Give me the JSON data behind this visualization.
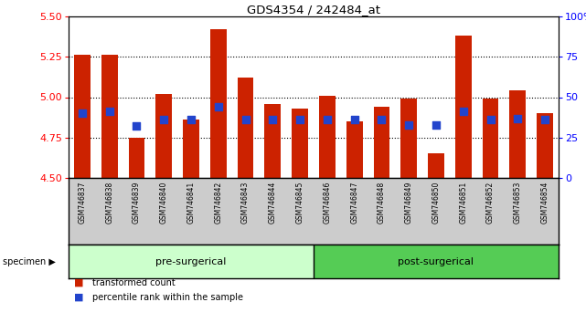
{
  "title": "GDS4354 / 242484_at",
  "samples": [
    "GSM746837",
    "GSM746838",
    "GSM746839",
    "GSM746840",
    "GSM746841",
    "GSM746842",
    "GSM746843",
    "GSM746844",
    "GSM746845",
    "GSM746846",
    "GSM746847",
    "GSM746848",
    "GSM746849",
    "GSM746850",
    "GSM746851",
    "GSM746852",
    "GSM746853",
    "GSM746854"
  ],
  "bar_heights": [
    5.26,
    5.26,
    4.75,
    5.02,
    4.86,
    5.42,
    5.12,
    4.96,
    4.93,
    5.01,
    4.85,
    4.94,
    4.99,
    4.65,
    5.38,
    4.99,
    5.04,
    4.9
  ],
  "blue_dots": [
    4.9,
    4.91,
    4.82,
    4.86,
    4.86,
    4.94,
    4.86,
    4.86,
    4.86,
    4.86,
    4.86,
    4.86,
    4.83,
    4.83,
    4.91,
    4.86,
    4.87,
    4.86
  ],
  "ymin": 4.5,
  "ymax": 5.5,
  "yticks": [
    4.5,
    4.75,
    5.0,
    5.25,
    5.5
  ],
  "grid_yticks": [
    4.75,
    5.0,
    5.25
  ],
  "right_ytick_percents": [
    0,
    25,
    50,
    75,
    100
  ],
  "right_yticklabels": [
    "0",
    "25",
    "50",
    "75",
    "100%"
  ],
  "bar_color": "#cc2200",
  "dot_color": "#2244cc",
  "pre_surgical_count": 9,
  "pre_surgical_label": "pre-surgerical",
  "post_surgical_label": "post-surgerical",
  "pre_group_color": "#ccffcc",
  "post_group_color": "#55cc55",
  "specimen_label": "specimen",
  "grid_color": "#888888",
  "legend_items": [
    "transformed count",
    "percentile rank within the sample"
  ],
  "background_color": "#ffffff",
  "tick_panel_color": "#cccccc"
}
